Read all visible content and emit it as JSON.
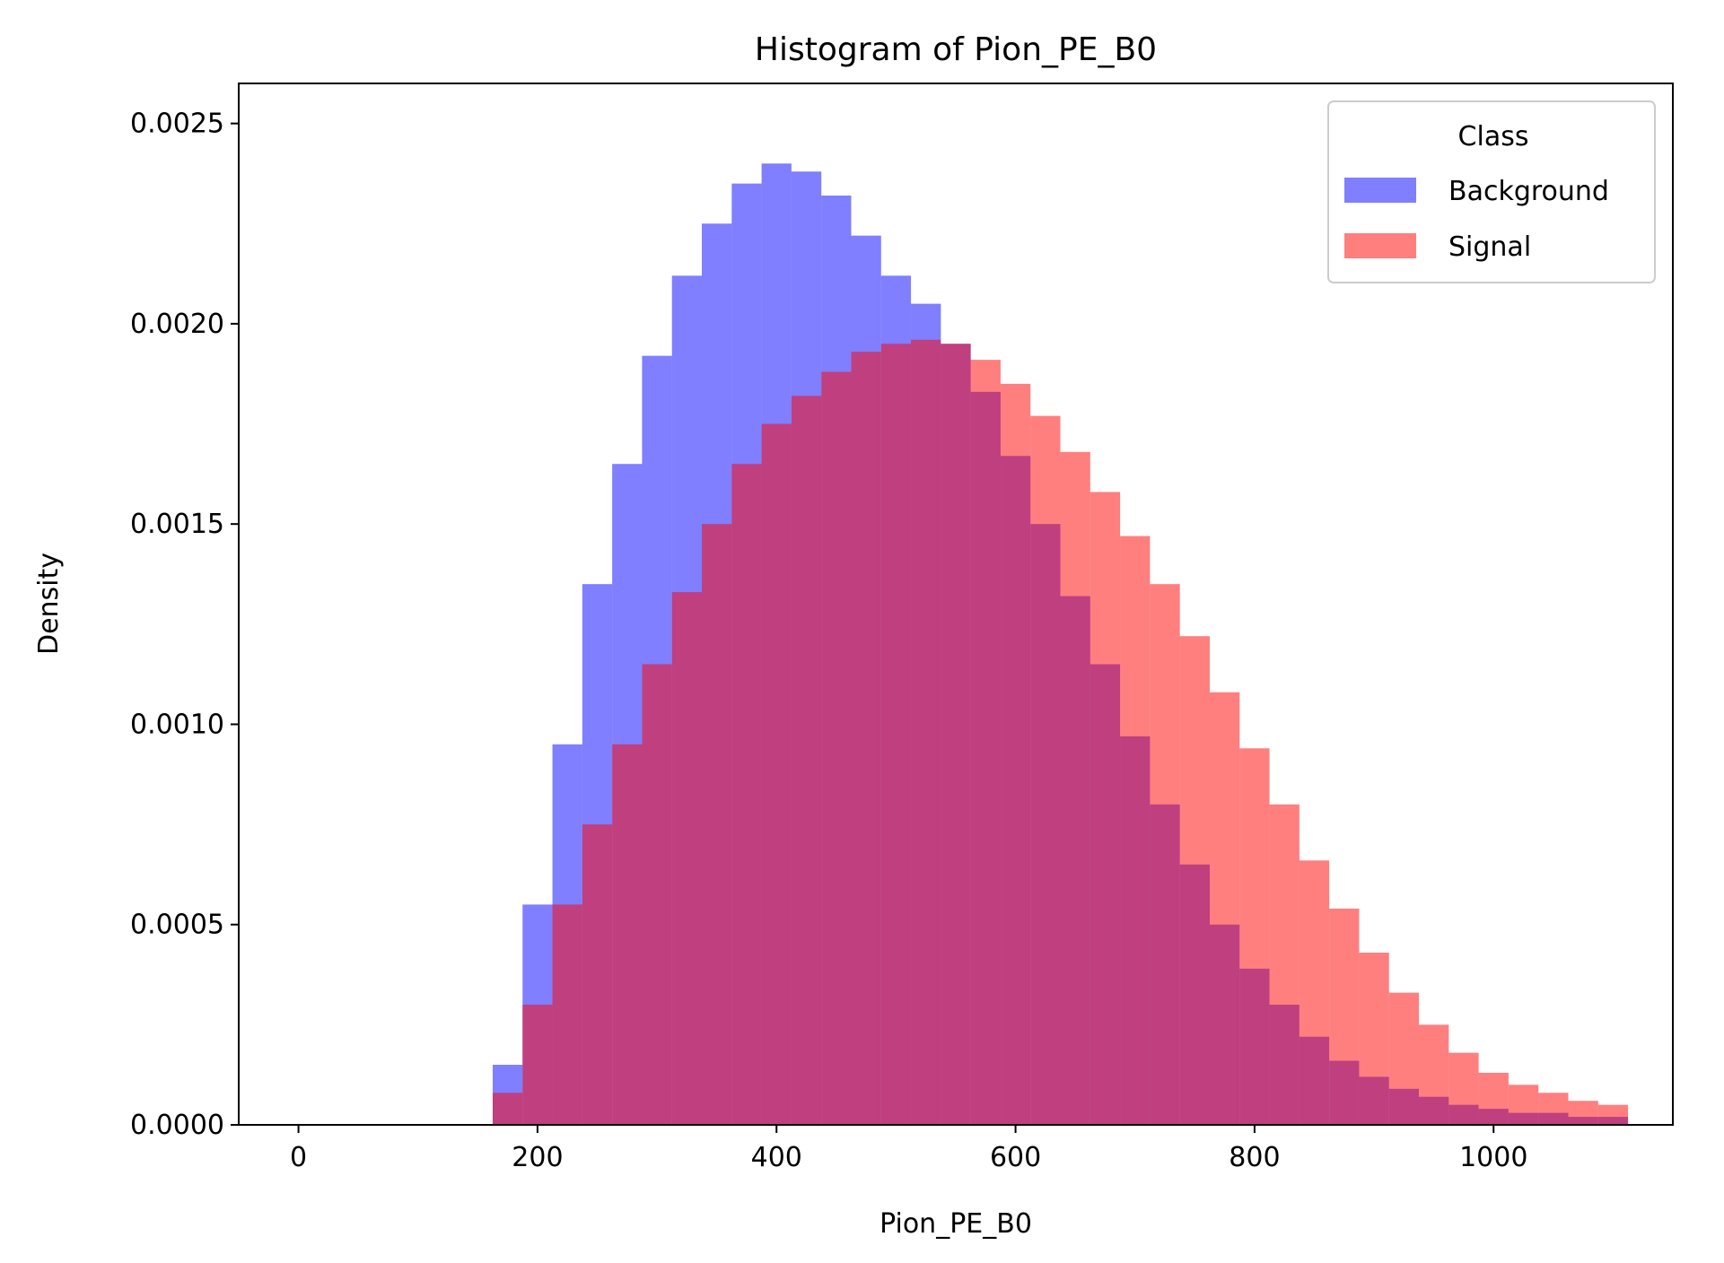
{
  "chart_data": {
    "type": "bar",
    "title": "Histogram of Pion_PE_B0",
    "xlabel": "Pion_PE_B0",
    "ylabel": "Density",
    "xlim": [
      -50,
      1150
    ],
    "ylim": [
      0,
      0.0026
    ],
    "xticks": [
      0,
      200,
      400,
      600,
      800,
      1000
    ],
    "xtick_labels": [
      "0",
      "200",
      "400",
      "600",
      "800",
      "1000"
    ],
    "yticks": [
      0,
      0.0005,
      0.001,
      0.0015,
      0.002,
      0.0025
    ],
    "ytick_labels": [
      "0.0000",
      "0.0005",
      "0.0010",
      "0.0015",
      "0.0020",
      "0.0025"
    ],
    "grid": false,
    "legend": {
      "title": "Class",
      "position": "top-right"
    },
    "series": [
      {
        "name": "Background",
        "color": "#0000ff",
        "opacity": 0.5,
        "x": [
          150,
          175,
          200,
          225,
          250,
          275,
          300,
          325,
          350,
          375,
          400,
          425,
          450,
          475,
          500,
          525,
          550,
          575,
          600,
          625,
          650,
          675,
          700,
          725,
          750,
          775,
          800,
          825,
          850,
          875,
          900,
          925,
          950,
          975,
          1000,
          1025,
          1050,
          1075,
          1100
        ],
        "values": [
          0.0,
          0.00015,
          0.00055,
          0.00095,
          0.00135,
          0.00165,
          0.00192,
          0.00212,
          0.00225,
          0.00235,
          0.0024,
          0.00238,
          0.00232,
          0.00222,
          0.00212,
          0.00205,
          0.00195,
          0.00183,
          0.00167,
          0.0015,
          0.00132,
          0.00115,
          0.00097,
          0.0008,
          0.00065,
          0.0005,
          0.00039,
          0.0003,
          0.00022,
          0.00016,
          0.00012,
          9e-05,
          7e-05,
          5e-05,
          4e-05,
          3e-05,
          3e-05,
          2e-05,
          2e-05
        ]
      },
      {
        "name": "Signal",
        "color": "#ff0000",
        "opacity": 0.5,
        "x": [
          150,
          175,
          200,
          225,
          250,
          275,
          300,
          325,
          350,
          375,
          400,
          425,
          450,
          475,
          500,
          525,
          550,
          575,
          600,
          625,
          650,
          675,
          700,
          725,
          750,
          775,
          800,
          825,
          850,
          875,
          900,
          925,
          950,
          975,
          1000,
          1025,
          1050,
          1075,
          1100
        ],
        "values": [
          0.0,
          8e-05,
          0.0003,
          0.00055,
          0.00075,
          0.00095,
          0.00115,
          0.00133,
          0.0015,
          0.00165,
          0.00175,
          0.00182,
          0.00188,
          0.00193,
          0.00195,
          0.00196,
          0.00195,
          0.00191,
          0.00185,
          0.00177,
          0.00168,
          0.00158,
          0.00147,
          0.00135,
          0.00122,
          0.00108,
          0.00094,
          0.0008,
          0.00066,
          0.00054,
          0.00043,
          0.00033,
          0.00025,
          0.00018,
          0.00013,
          0.0001,
          8e-05,
          6e-05,
          5e-05
        ]
      }
    ]
  }
}
